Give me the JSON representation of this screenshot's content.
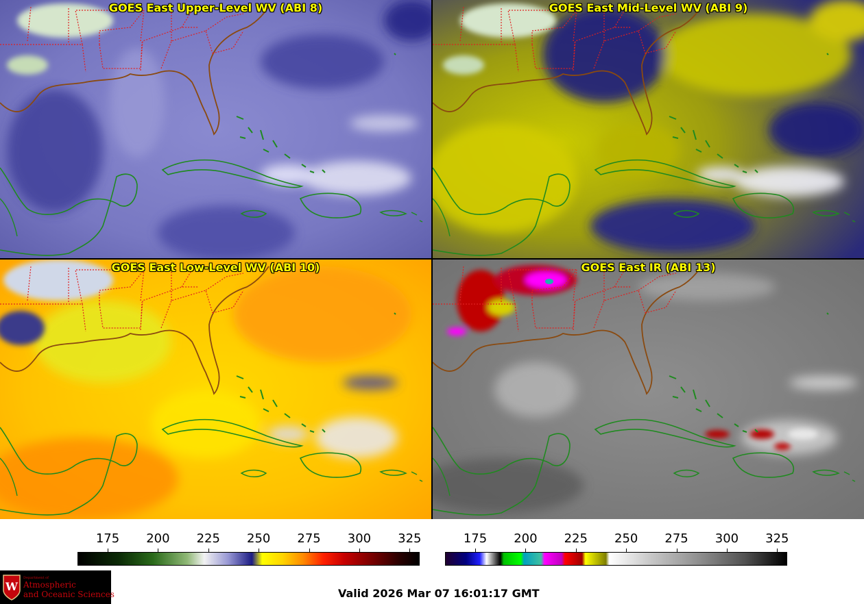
{
  "panels": [
    {
      "title": "GOES East Upper-Level WV (ABI 8)",
      "band": "ABI 8",
      "colortable": "wv"
    },
    {
      "title": "GOES East Mid-Level WV (ABI 9)",
      "band": "ABI 9",
      "colortable": "wv"
    },
    {
      "title": "GOES East Low-Level WV (ABI 10)",
      "band": "ABI 10",
      "colortable": "wv"
    },
    {
      "title": "GOES East IR (ABI 13)",
      "band": "ABI 13",
      "colortable": "ir"
    }
  ],
  "colorbars": {
    "wv": {
      "ticks": [
        "175",
        "200",
        "225",
        "250",
        "275",
        "300",
        "325"
      ]
    },
    "ir": {
      "ticks": [
        "175",
        "200",
        "225",
        "250",
        "275",
        "300",
        "325"
      ]
    }
  },
  "valid_time": "Valid 2026 Mar 07 16:01:17 GMT",
  "logo": {
    "dept": "Department of",
    "line1": "Atmospheric",
    "line2": "and Oceanic Sciences",
    "icon": "uw-crest-icon"
  },
  "colors": {
    "coastline": "#1f8a1f",
    "state_border": "#e02020",
    "title_text": "#ffff00"
  }
}
